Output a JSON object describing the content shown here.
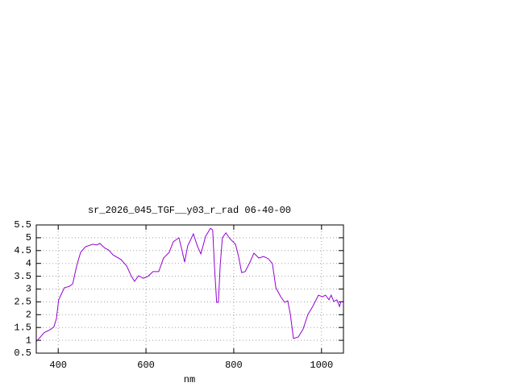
{
  "chart_data": {
    "type": "line",
    "title": "sr_2026_045_TGF__y03_r_rad 06-40-00",
    "x_label": "nm",
    "xlim": [
      350,
      1050
    ],
    "ylim": [
      0.5,
      5.5
    ],
    "xticks": [
      400,
      600,
      800,
      1000
    ],
    "yticks": [
      0.5,
      1,
      1.5,
      2,
      2.5,
      3,
      3.5,
      4,
      4.5,
      5,
      5.5
    ],
    "grid": true,
    "series": [
      {
        "color": "#9400d3",
        "x": [
          350,
          368,
          381,
          390,
          396,
          401,
          414,
          425,
          433,
          442,
          451,
          462,
          479,
          488,
          495,
          506,
          515,
          525,
          543,
          556,
          567,
          574,
          583,
          594,
          604,
          616,
          629,
          640,
          653,
          662,
          675,
          682,
          688,
          695,
          708,
          717,
          725,
          736,
          747,
          752,
          756,
          761,
          765,
          769,
          774,
          782,
          791,
          804,
          811,
          818,
          826,
          837,
          846,
          857,
          868,
          879,
          888,
          896,
          907,
          916,
          923,
          929,
          936,
          947,
          958,
          969,
          980,
          993,
          1002,
          1009,
          1017,
          1022,
          1028,
          1035,
          1041,
          1044,
          1050
        ],
        "values": [
          0.95,
          1.3,
          1.41,
          1.52,
          1.85,
          2.58,
          3.05,
          3.1,
          3.2,
          3.9,
          4.43,
          4.65,
          4.75,
          4.72,
          4.78,
          4.6,
          4.52,
          4.33,
          4.15,
          3.9,
          3.49,
          3.3,
          3.52,
          3.42,
          3.49,
          3.68,
          3.68,
          4.21,
          4.43,
          4.84,
          5.0,
          4.52,
          4.05,
          4.68,
          5.15,
          4.68,
          4.37,
          5.06,
          5.37,
          5.3,
          3.9,
          2.48,
          2.48,
          3.9,
          5.0,
          5.19,
          4.97,
          4.75,
          4.27,
          3.64,
          3.68,
          4.05,
          4.4,
          4.21,
          4.27,
          4.18,
          3.99,
          3.05,
          2.7,
          2.48,
          2.54,
          2.01,
          1.07,
          1.13,
          1.44,
          2.01,
          2.32,
          2.76,
          2.7,
          2.76,
          2.58,
          2.76,
          2.51,
          2.58,
          2.32,
          2.51,
          2.51
        ]
      }
    ]
  }
}
